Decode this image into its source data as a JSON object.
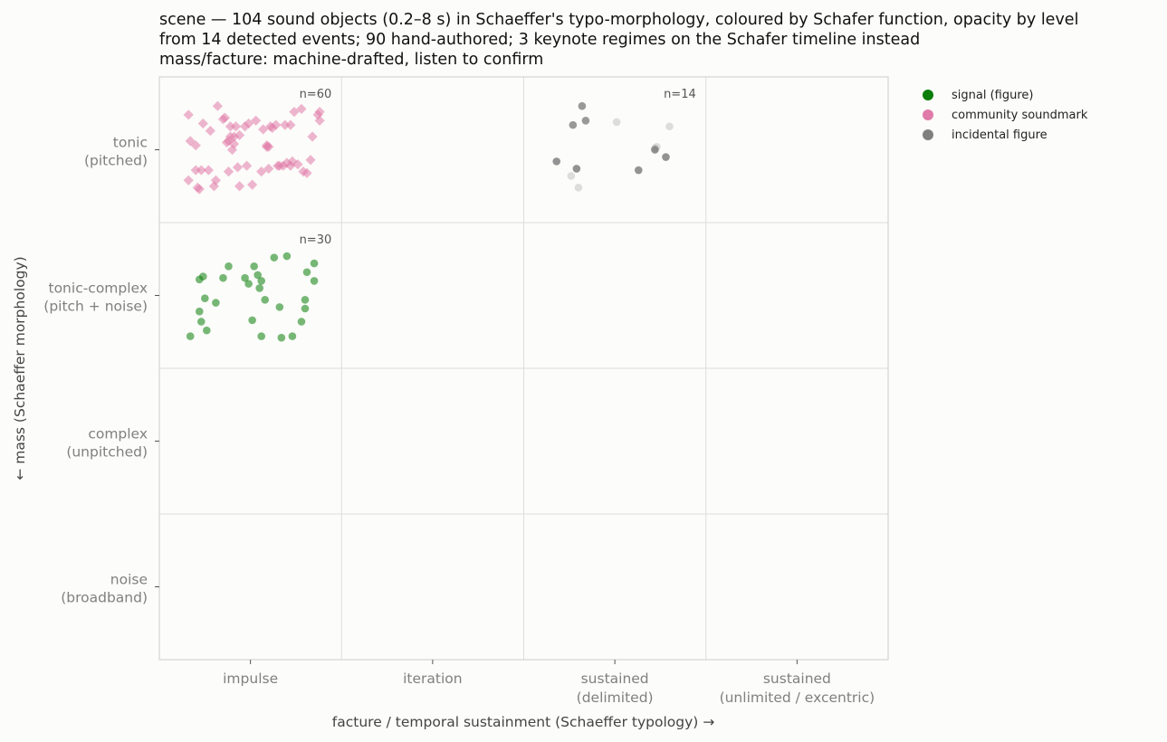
{
  "title_lines": [
    "scene — 104 sound objects (0.2–8 s) in Schaeffer's typo-morphology, coloured by Schafer function, opacity by level",
    "from 14 detected events; 90 hand-authored; 3 keynote regimes on the Schafer timeline instead",
    "mass/facture: machine-drafted, listen to confirm"
  ],
  "legend": [
    {
      "label": "signal (figure)",
      "color": "#0a7d0a"
    },
    {
      "label": "community soundmark",
      "color": "#e07aa8"
    },
    {
      "label": "incidental figure",
      "color": "#808080"
    }
  ],
  "chart_data": {
    "type": "scatter",
    "xlabel": "facture / temporal sustainment  (Schaeffer typology) →",
    "ylabel": "← mass  (Schaeffer morphology)",
    "x_categories": [
      {
        "line1": "impulse",
        "line2": ""
      },
      {
        "line1": "iteration",
        "line2": ""
      },
      {
        "line1": "sustained",
        "line2": "(delimited)"
      },
      {
        "line1": "sustained",
        "line2": "(unlimited / excentric)"
      }
    ],
    "y_categories": [
      {
        "line1": "tonic",
        "line2": "(pitched)"
      },
      {
        "line1": "tonic-complex",
        "line2": "(pitch + noise)"
      },
      {
        "line1": "complex",
        "line2": "(unpitched)"
      },
      {
        "line1": "noise",
        "line2": "(broadband)"
      }
    ],
    "cells": [
      {
        "x_cat": 0,
        "y_cat": 0,
        "count_label": "n=60"
      },
      {
        "x_cat": 0,
        "y_cat": 1,
        "count_label": "n=30"
      },
      {
        "x_cat": 2,
        "y_cat": 0,
        "count_label": "n=14"
      }
    ],
    "series": [
      {
        "name": "community soundmark",
        "color": "#e07aa8",
        "marker": "diamond",
        "x_cat": 0,
        "y_cat": 0,
        "points": [
          [
            -0.34,
            0.24
          ],
          [
            -0.34,
            -0.21
          ],
          [
            -0.33,
            0.06
          ],
          [
            -0.3,
            -0.14
          ],
          [
            -0.3,
            0.03
          ],
          [
            -0.29,
            -0.26
          ],
          [
            -0.28,
            -0.27
          ],
          [
            -0.27,
            -0.14
          ],
          [
            -0.26,
            0.18
          ],
          [
            -0.23,
            -0.14
          ],
          [
            -0.22,
            0.13
          ],
          [
            -0.2,
            -0.25
          ],
          [
            -0.19,
            -0.21
          ],
          [
            -0.18,
            0.3
          ],
          [
            -0.15,
            0.21
          ],
          [
            -0.14,
            0.22
          ],
          [
            -0.13,
            0.05
          ],
          [
            -0.12,
            -0.15
          ],
          [
            -0.12,
            0.06
          ],
          [
            -0.11,
            0.16
          ],
          [
            -0.11,
            0.09
          ],
          [
            -0.1,
            0.0
          ],
          [
            -0.09,
            0.04
          ],
          [
            -0.09,
            0.09
          ],
          [
            -0.08,
            0.16
          ],
          [
            -0.07,
            -0.12
          ],
          [
            -0.06,
            0.1
          ],
          [
            -0.06,
            -0.25
          ],
          [
            -0.03,
            0.16
          ],
          [
            -0.02,
            -0.11
          ],
          [
            -0.01,
            0.18
          ],
          [
            0.01,
            -0.24
          ],
          [
            0.03,
            0.2
          ],
          [
            0.06,
            -0.15
          ],
          [
            0.07,
            0.14
          ],
          [
            0.09,
            0.02
          ],
          [
            0.09,
            0.03
          ],
          [
            0.1,
            0.02
          ],
          [
            0.1,
            -0.13
          ],
          [
            0.11,
            0.16
          ],
          [
            0.12,
            0.15
          ],
          [
            0.14,
            0.17
          ],
          [
            0.15,
            -0.11
          ],
          [
            0.16,
            -0.11
          ],
          [
            0.18,
            -0.11
          ],
          [
            0.19,
            0.17
          ],
          [
            0.2,
            -0.09
          ],
          [
            0.22,
            0.17
          ],
          [
            0.22,
            -0.11
          ],
          [
            0.23,
            -0.08
          ],
          [
            0.24,
            0.26
          ],
          [
            0.26,
            -0.1
          ],
          [
            0.28,
            0.28
          ],
          [
            0.29,
            -0.15
          ],
          [
            0.31,
            -0.16
          ],
          [
            0.33,
            -0.07
          ],
          [
            0.34,
            0.09
          ],
          [
            0.37,
            0.24
          ],
          [
            0.38,
            0.2
          ],
          [
            0.38,
            0.26
          ]
        ],
        "opacity": [
          0.55,
          0.55,
          0.55,
          0.55,
          0.55,
          0.55,
          0.55,
          0.55,
          0.55,
          0.55,
          0.55,
          0.55,
          0.55,
          0.55,
          0.55,
          0.55,
          0.55,
          0.55,
          0.55,
          0.55,
          0.55,
          0.55,
          0.55,
          0.55,
          0.55,
          0.55,
          0.55,
          0.55,
          0.55,
          0.55,
          0.55,
          0.55,
          0.55,
          0.55,
          0.55,
          0.55,
          0.55,
          0.55,
          0.55,
          0.55,
          0.55,
          0.55,
          0.55,
          0.55,
          0.55,
          0.55,
          0.55,
          0.55,
          0.55,
          0.55,
          0.55,
          0.55,
          0.55,
          0.55,
          0.55,
          0.55,
          0.55,
          0.55,
          0.55,
          0.55
        ]
      },
      {
        "name": "signal (figure)",
        "color": "#0a7d0a",
        "marker": "circle",
        "x_cat": 0,
        "y_cat": 1,
        "points": [
          [
            -0.33,
            -0.28
          ],
          [
            -0.28,
            -0.11
          ],
          [
            -0.28,
            0.11
          ],
          [
            -0.27,
            -0.18
          ],
          [
            -0.26,
            0.13
          ],
          [
            -0.25,
            -0.02
          ],
          [
            -0.24,
            -0.24
          ],
          [
            -0.19,
            -0.05
          ],
          [
            -0.15,
            0.12
          ],
          [
            -0.12,
            0.2
          ],
          [
            -0.03,
            0.12
          ],
          [
            -0.01,
            0.08
          ],
          [
            0.01,
            -0.17
          ],
          [
            0.02,
            0.2
          ],
          [
            0.04,
            0.14
          ],
          [
            0.05,
            0.05
          ],
          [
            0.06,
            -0.28
          ],
          [
            0.06,
            0.1
          ],
          [
            0.08,
            -0.03
          ],
          [
            0.13,
            0.26
          ],
          [
            0.16,
            -0.08
          ],
          [
            0.17,
            -0.29
          ],
          [
            0.2,
            0.27
          ],
          [
            0.23,
            -0.28
          ],
          [
            0.28,
            -0.18
          ],
          [
            0.3,
            -0.09
          ],
          [
            0.3,
            -0.03
          ],
          [
            0.31,
            0.16
          ],
          [
            0.35,
            0.1
          ],
          [
            0.35,
            0.22
          ]
        ],
        "opacity": [
          0.55,
          0.55,
          0.55,
          0.55,
          0.55,
          0.55,
          0.55,
          0.55,
          0.55,
          0.55,
          0.55,
          0.55,
          0.55,
          0.55,
          0.55,
          0.55,
          0.55,
          0.55,
          0.55,
          0.55,
          0.55,
          0.55,
          0.55,
          0.55,
          0.55,
          0.55,
          0.55,
          0.55,
          0.55,
          0.55
        ]
      },
      {
        "name": "incidental figure",
        "color": "#808080",
        "marker": "circle",
        "x_cat": 2,
        "y_cat": 0,
        "points": [
          [
            -0.32,
            -0.08
          ],
          [
            -0.24,
            -0.18
          ],
          [
            -0.23,
            0.17
          ],
          [
            -0.21,
            -0.13
          ],
          [
            -0.2,
            -0.26
          ],
          [
            -0.18,
            0.3
          ],
          [
            -0.16,
            0.2
          ],
          [
            0.01,
            0.19
          ],
          [
            0.13,
            -0.14
          ],
          [
            0.22,
            0.0
          ],
          [
            0.23,
            0.02
          ],
          [
            0.22,
            0.01
          ],
          [
            0.28,
            -0.05
          ],
          [
            0.3,
            0.16
          ]
        ],
        "opacity": [
          0.85,
          0.25,
          0.8,
          0.85,
          0.25,
          0.8,
          0.8,
          0.25,
          0.85,
          0.85,
          0.25,
          0.25,
          0.85,
          0.25
        ]
      }
    ]
  }
}
